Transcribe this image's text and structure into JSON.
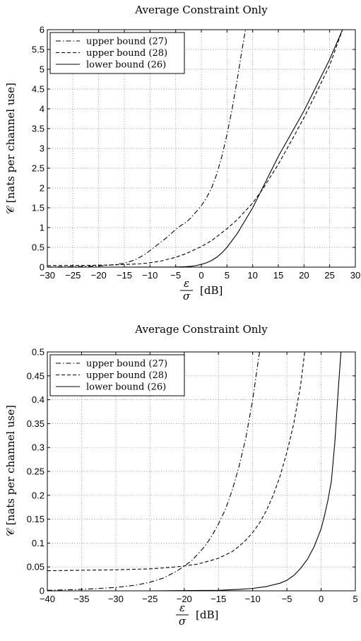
{
  "chart_data": [
    {
      "type": "line",
      "title": "Average Constraint Only",
      "xlabel_num": "ε",
      "xlabel_den": "σ",
      "xlabel_unit": "[dB]",
      "ylabel": "𝒞 [nats per channel use]",
      "xlim": [
        -30,
        30
      ],
      "ylim": [
        0,
        6
      ],
      "xticks": [
        -30,
        -25,
        -20,
        -15,
        -10,
        -5,
        0,
        5,
        10,
        15,
        20,
        25,
        30
      ],
      "yticks": [
        0,
        0.5,
        1,
        1.5,
        2,
        2.5,
        3,
        3.5,
        4,
        4.5,
        5,
        5.5,
        6
      ],
      "ytick_labels": [
        "0",
        "0.5",
        "1",
        "1.5",
        "2",
        "2.5",
        "3",
        "3.5",
        "4",
        "4.5",
        "5",
        "5.5",
        "6"
      ],
      "grid": true,
      "legend_position": "top-left",
      "series": [
        {
          "name": "upper bound (27)",
          "dash": "dashdot",
          "x": [
            -30,
            -25,
            -20,
            -17,
            -15,
            -13,
            -11,
            -9,
            -7,
            -5,
            -4,
            -3,
            -2,
            -1,
            0,
            1,
            2,
            3,
            4,
            5,
            6,
            7,
            8,
            8.6
          ],
          "y": [
            0.005,
            0.01,
            0.03,
            0.06,
            0.1,
            0.18,
            0.32,
            0.52,
            0.72,
            0.95,
            1.05,
            1.13,
            1.25,
            1.4,
            1.55,
            1.75,
            2.0,
            2.35,
            2.8,
            3.35,
            4.0,
            4.75,
            5.55,
            6.0
          ]
        },
        {
          "name": "upper bound (28)",
          "dash": "dashed",
          "x": [
            -30,
            -25,
            -20,
            -15,
            -12,
            -10,
            -8,
            -5,
            -3,
            0,
            2,
            5,
            7,
            10,
            12,
            15,
            18,
            20,
            22,
            25,
            27.5
          ],
          "y": [
            0.04,
            0.042,
            0.048,
            0.065,
            0.085,
            0.11,
            0.15,
            0.25,
            0.34,
            0.52,
            0.67,
            0.97,
            1.2,
            1.62,
            1.98,
            2.6,
            3.3,
            3.78,
            4.3,
            5.1,
            6.0
          ]
        },
        {
          "name": "lower bound (26)",
          "dash": "solid",
          "x": [
            -30,
            -20,
            -10,
            -5,
            -3,
            -2,
            -1,
            0,
            1,
            2,
            3,
            4,
            5,
            7,
            10,
            15,
            20,
            25,
            27.5
          ],
          "y": [
            0,
            0,
            0.0005,
            0.004,
            0.012,
            0.022,
            0.04,
            0.07,
            0.11,
            0.17,
            0.25,
            0.36,
            0.5,
            0.85,
            1.5,
            2.8,
            3.95,
            5.25,
            6.0
          ]
        }
      ]
    },
    {
      "type": "line",
      "title": "Average Constraint Only",
      "xlabel_num": "ε",
      "xlabel_den": "σ",
      "xlabel_unit": "[dB]",
      "ylabel": "𝒞 [nats per channel use]",
      "xlim": [
        -40,
        5
      ],
      "ylim": [
        0,
        0.5
      ],
      "xticks": [
        -40,
        -35,
        -30,
        -25,
        -20,
        -15,
        -10,
        -5,
        0,
        5
      ],
      "yticks": [
        0,
        0.05,
        0.1,
        0.15,
        0.2,
        0.25,
        0.3,
        0.35,
        0.4,
        0.45,
        0.5
      ],
      "ytick_labels": [
        "0",
        "0.05",
        "0.1",
        "0.15",
        "0.2",
        "0.25",
        "0.3",
        "0.35",
        "0.4",
        "0.45",
        "0.5"
      ],
      "grid": true,
      "legend_position": "top-left",
      "series": [
        {
          "name": "upper bound (27)",
          "dash": "dashdot",
          "x": [
            -40,
            -35,
            -30,
            -27,
            -25,
            -23,
            -21,
            -20,
            -19,
            -18,
            -17,
            -16,
            -15,
            -14,
            -13,
            -12,
            -11,
            -10,
            -9.5,
            -9
          ],
          "y": [
            0.001,
            0.003,
            0.007,
            0.012,
            0.018,
            0.027,
            0.042,
            0.052,
            0.062,
            0.077,
            0.093,
            0.114,
            0.14,
            0.17,
            0.21,
            0.26,
            0.32,
            0.4,
            0.45,
            0.5
          ]
        },
        {
          "name": "upper bound (28)",
          "dash": "dashed",
          "x": [
            -40,
            -35,
            -30,
            -25,
            -22,
            -20,
            -18,
            -15,
            -13,
            -12,
            -11,
            -10,
            -9,
            -8,
            -7,
            -6,
            -5,
            -4,
            -3,
            -2.4
          ],
          "y": [
            0.042,
            0.043,
            0.044,
            0.046,
            0.049,
            0.052,
            0.056,
            0.068,
            0.082,
            0.093,
            0.106,
            0.122,
            0.142,
            0.168,
            0.2,
            0.24,
            0.29,
            0.35,
            0.43,
            0.5
          ]
        },
        {
          "name": "lower bound (26)",
          "dash": "solid",
          "x": [
            -40,
            -25,
            -15,
            -12,
            -10,
            -8,
            -6,
            -5,
            -4,
            -3,
            -2,
            -1,
            0,
            0.5,
            1,
            1.5,
            2,
            2.5,
            2.9
          ],
          "y": [
            0,
            0,
            0.001,
            0.003,
            0.005,
            0.009,
            0.016,
            0.022,
            0.032,
            0.047,
            0.066,
            0.093,
            0.13,
            0.158,
            0.19,
            0.23,
            0.31,
            0.42,
            0.5
          ]
        }
      ]
    }
  ]
}
